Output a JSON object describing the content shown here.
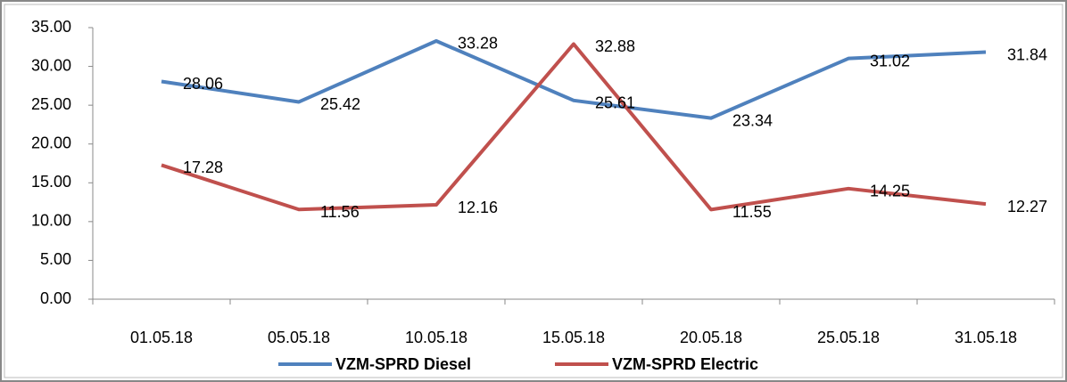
{
  "chart_data": {
    "type": "line",
    "categories": [
      "01.05.18",
      "05.05.18",
      "10.05.18",
      "15.05.18",
      "20.05.18",
      "25.05.18",
      "31.05.18"
    ],
    "series": [
      {
        "name": "VZM-SPRD Diesel",
        "color": "#4f81bd",
        "values": [
          28.06,
          25.42,
          33.28,
          25.61,
          23.34,
          31.02,
          31.84
        ]
      },
      {
        "name": "VZM-SPRD Electric",
        "color": "#c0504d",
        "values": [
          17.28,
          11.56,
          12.16,
          32.88,
          11.55,
          14.25,
          12.27
        ]
      }
    ],
    "ylim": [
      0,
      35
    ],
    "yticks": [
      {
        "value": 0,
        "label": "0.00"
      },
      {
        "value": 5,
        "label": "5.00"
      },
      {
        "value": 10,
        "label": "10.00"
      },
      {
        "value": 15,
        "label": "15.00"
      },
      {
        "value": 20,
        "label": "20.00"
      },
      {
        "value": 25,
        "label": "25.00"
      },
      {
        "value": 30,
        "label": "30.00"
      },
      {
        "value": 35,
        "label": "35.00"
      }
    ],
    "grid": false,
    "legend": "bottom"
  }
}
